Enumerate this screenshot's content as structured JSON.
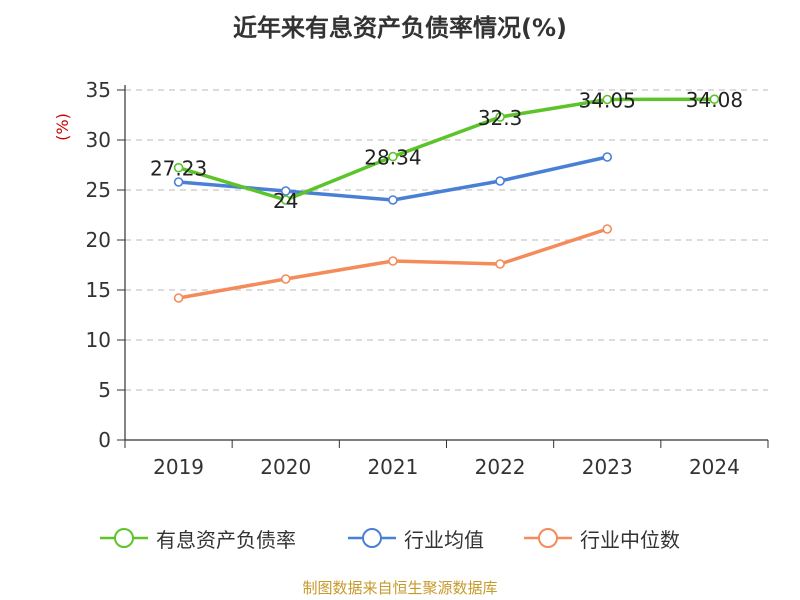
{
  "title": "近年来有息资产负债率情况(%)",
  "source": "制图数据来自恒生聚源数据库",
  "colors": {
    "series1": "#5cc42a",
    "series2": "#4a7fd6",
    "series3": "#f48b5a",
    "source": "#c79a2a",
    "ylabel": "#cc0000"
  },
  "chart_data": {
    "type": "line",
    "title": "近年来有息资产负债率情况(%)",
    "xlabel": "",
    "ylabel": "(%)",
    "ylim": [
      0,
      35
    ],
    "yticks": [
      0,
      5,
      10,
      15,
      20,
      25,
      30,
      35
    ],
    "grid": "horizontal-dashed",
    "legend": "bottom",
    "categories": [
      "2019",
      "2020",
      "2021",
      "2022",
      "2023",
      "2024"
    ],
    "series": [
      {
        "name": "有息资产负债率",
        "values": [
          27.23,
          24,
          28.34,
          32.3,
          34.05,
          34.08
        ],
        "labels": [
          "27.23",
          "24",
          "28.34",
          "32.3",
          "34.05",
          "34.08"
        ]
      },
      {
        "name": "行业均值",
        "values": [
          25.8,
          24.9,
          24.0,
          25.9,
          28.3,
          null
        ]
      },
      {
        "name": "行业中位数",
        "values": [
          14.2,
          16.1,
          17.9,
          17.6,
          21.1,
          null
        ]
      }
    ]
  }
}
